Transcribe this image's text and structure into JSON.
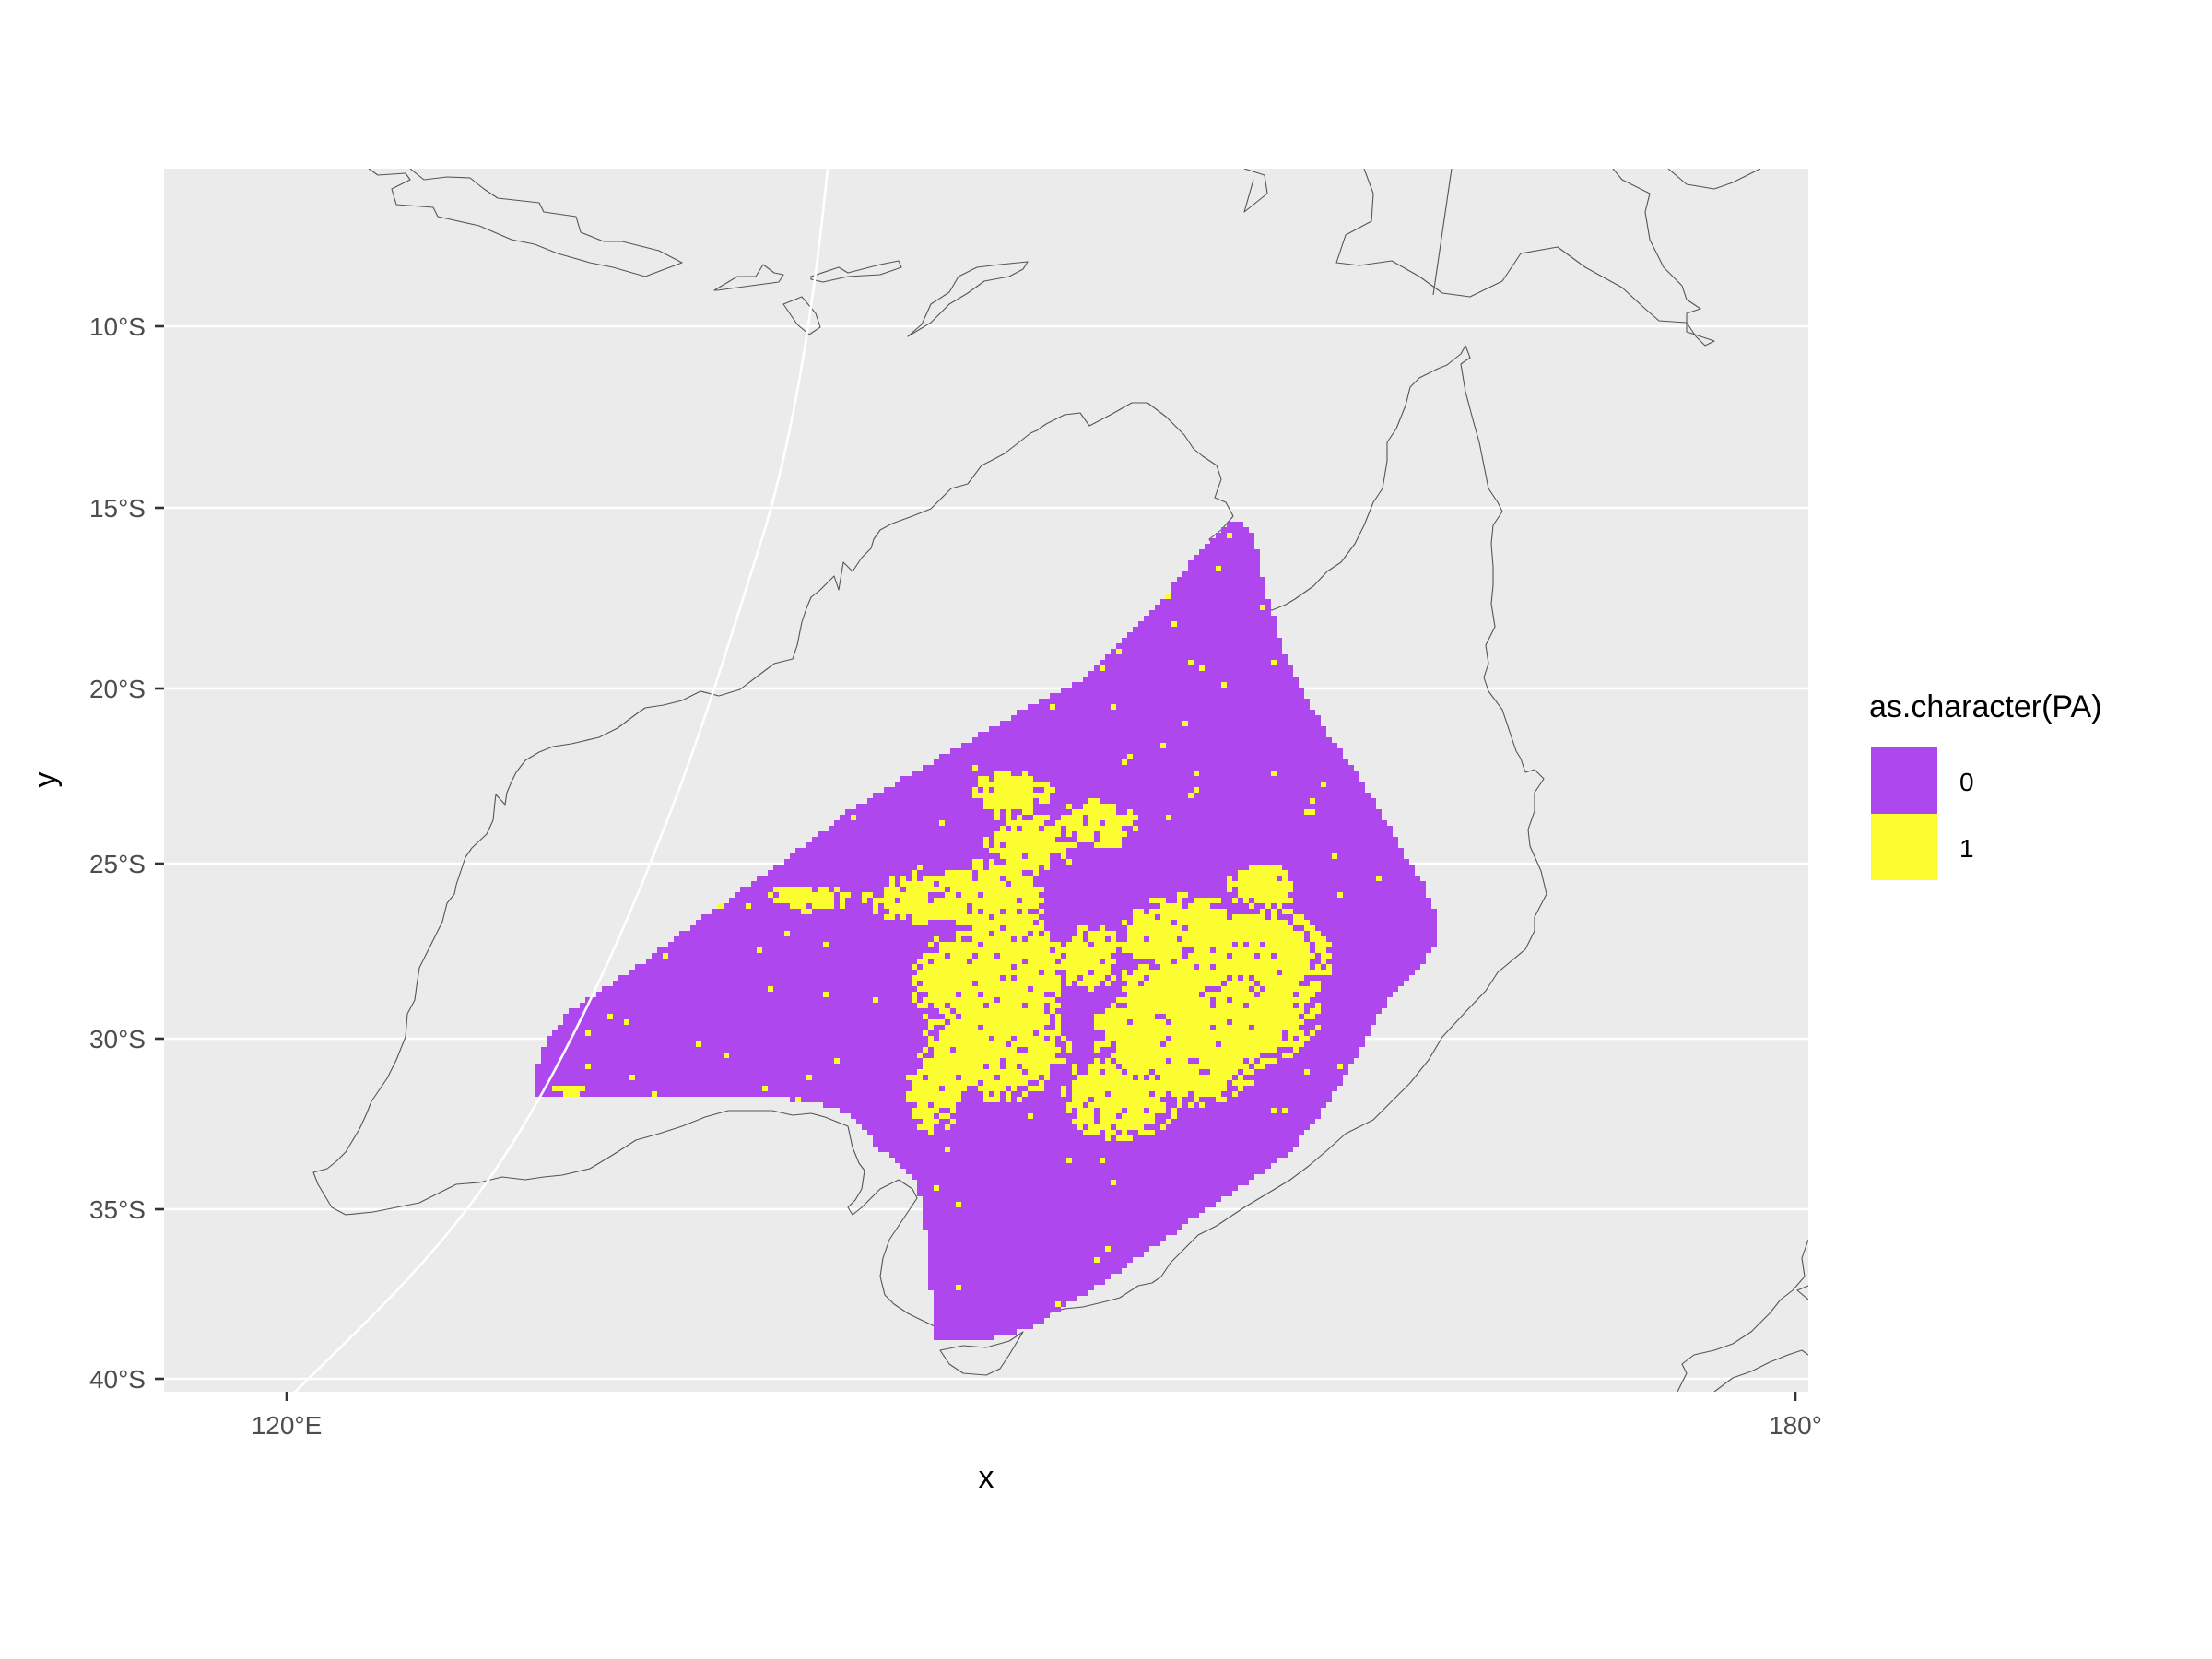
{
  "chart_data": {
    "type": "heatmap",
    "title": "",
    "xlabel": "x",
    "ylabel": "y",
    "x_ticks": [
      {
        "value": 120,
        "label": "120°E"
      },
      {
        "value": 180,
        "label": "180°"
      }
    ],
    "y_ticks": [
      {
        "value": -10,
        "label": "10°S"
      },
      {
        "value": -15,
        "label": "15°S"
      },
      {
        "value": -20,
        "label": "20°S"
      },
      {
        "value": -25,
        "label": "25°S"
      },
      {
        "value": -30,
        "label": "30°S"
      },
      {
        "value": -35,
        "label": "35°S"
      },
      {
        "value": -40,
        "label": "40°S"
      }
    ],
    "legend": {
      "title": "as.character(PA)",
      "position": "right",
      "entries": [
        {
          "label": "0",
          "color": "#ae48ee"
        },
        {
          "label": "1",
          "color": "#fcfd30"
        }
      ]
    },
    "background_color": "#ebebeb",
    "grid": true,
    "projection": "curved (non-rectangular) map projection",
    "categories": [
      "0",
      "1"
    ],
    "cell_size_deg": 0.25,
    "extent": {
      "lon": [
        129.25,
        160.0
      ],
      "lat": [
        -38.6,
        -15.3
      ]
    },
    "presence_regions_note": "value 1 concentrated in two clusters inland of south-eastern Australia; remaining cells value 0"
  }
}
